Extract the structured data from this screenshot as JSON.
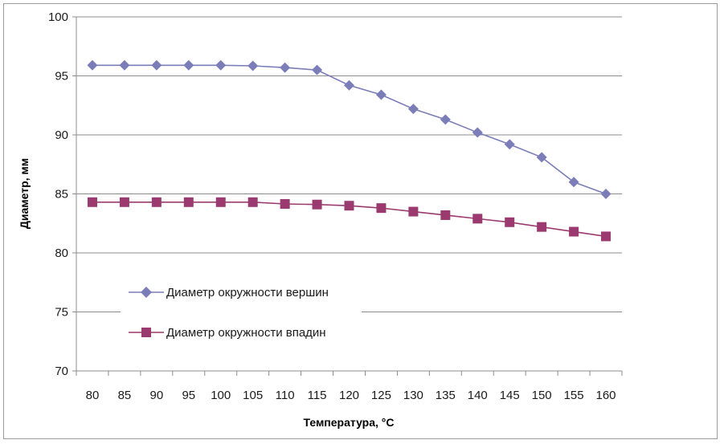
{
  "chart_data": {
    "type": "line",
    "title": "",
    "xlabel": "Температура, °C",
    "ylabel": "Диаметр, мм",
    "ylim": [
      70,
      100
    ],
    "yticks": [
      70,
      75,
      80,
      85,
      90,
      95,
      100
    ],
    "grid": true,
    "legend_position": "bottom-left",
    "categories": [
      "80",
      "85",
      "90",
      "95",
      "100",
      "105",
      "110",
      "115",
      "120",
      "125",
      "130",
      "135",
      "140",
      "145",
      "150",
      "155",
      "160"
    ],
    "series": [
      {
        "name": "Диаметр окружности вершин",
        "color": "#7b7db8",
        "marker": "diamond",
        "values": [
          95.9,
          95.9,
          95.9,
          95.9,
          95.9,
          95.85,
          95.7,
          95.5,
          94.2,
          93.4,
          92.2,
          91.3,
          90.2,
          89.2,
          88.1,
          86.0,
          85.0
        ]
      },
      {
        "name": "Диаметр окружности впадин",
        "color": "#9b3a6e",
        "marker": "square",
        "values": [
          84.3,
          84.3,
          84.3,
          84.3,
          84.3,
          84.3,
          84.15,
          84.1,
          84.0,
          83.8,
          83.5,
          83.2,
          82.9,
          82.6,
          82.2,
          81.8,
          81.4
        ]
      }
    ]
  }
}
